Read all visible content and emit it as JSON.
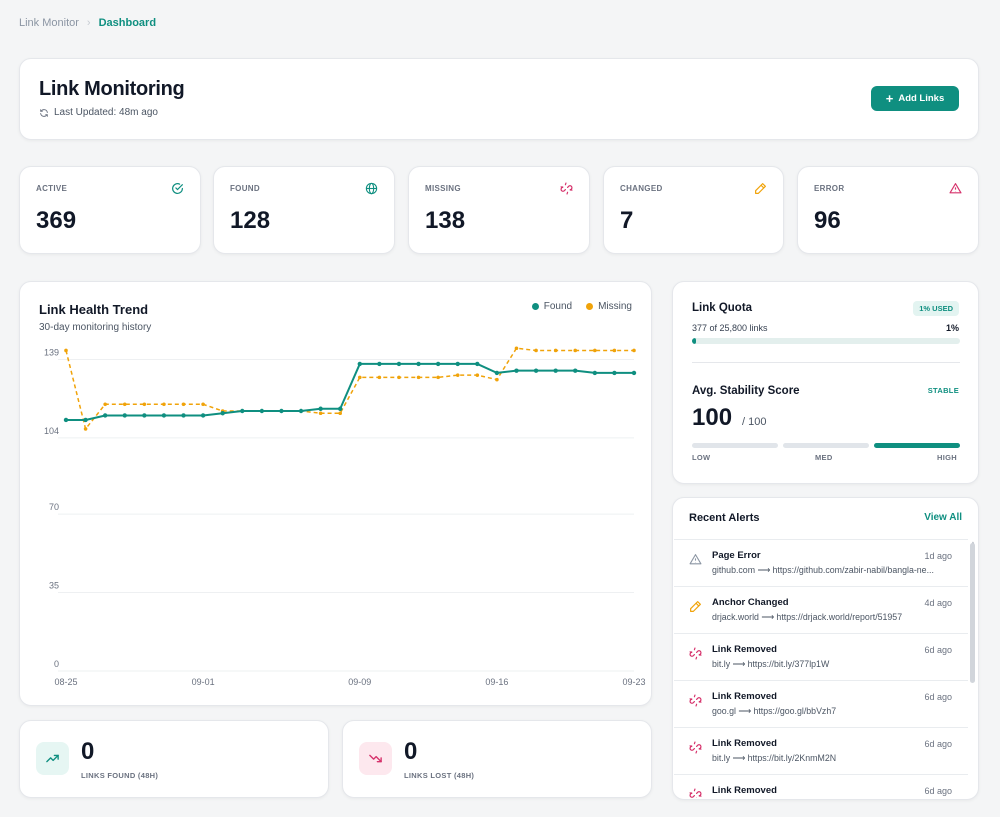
{
  "breadcrumb": {
    "root": "Link Monitor",
    "current": "Dashboard"
  },
  "header": {
    "title": "Link Monitoring",
    "last_updated": "Last Updated: 48m ago",
    "add_button": "Add Links"
  },
  "stats": [
    {
      "label": "ACTIVE",
      "value": "369",
      "icon": "check-circle-icon",
      "color": "#0f8f80"
    },
    {
      "label": "FOUND",
      "value": "128",
      "icon": "globe-icon",
      "color": "#0f8f80"
    },
    {
      "label": "MISSING",
      "value": "138",
      "icon": "broken-link-icon",
      "color": "#d6336c"
    },
    {
      "label": "CHANGED",
      "value": "7",
      "icon": "pencil-icon",
      "color": "#f0a30a"
    },
    {
      "label": "ERROR",
      "value": "96",
      "icon": "warning-icon",
      "color": "#d6336c"
    }
  ],
  "trend": {
    "title": "Link Health Trend",
    "subtitle": "30-day monitoring history"
  },
  "chart_data": {
    "type": "line",
    "title": "Link Health Trend",
    "subtitle": "30-day monitoring history",
    "x": [
      "08-25",
      "08-26",
      "08-27",
      "08-28",
      "08-29",
      "08-30",
      "08-31",
      "09-01",
      "09-02",
      "09-03",
      "09-04",
      "09-05",
      "09-06",
      "09-07",
      "09-08",
      "09-09",
      "09-10",
      "09-11",
      "09-12",
      "09-13",
      "09-14",
      "09-15",
      "09-16",
      "09-17",
      "09-18",
      "09-19",
      "09-20",
      "09-21",
      "09-22",
      "09-23"
    ],
    "xticks": [
      "08-25",
      "09-01",
      "09-09",
      "09-16",
      "09-23"
    ],
    "yticks": [
      0,
      35,
      70,
      104,
      139
    ],
    "ylim": [
      0,
      145
    ],
    "legend": "top-right",
    "series": [
      {
        "name": "Found",
        "color": "#0f8f80",
        "dashed": false,
        "values": [
          112,
          112,
          114,
          114,
          114,
          114,
          114,
          114,
          115,
          116,
          116,
          116,
          116,
          117,
          117,
          137,
          137,
          137,
          137,
          137,
          137,
          137,
          133,
          134,
          134,
          134,
          134,
          133,
          133,
          133
        ]
      },
      {
        "name": "Missing",
        "color": "#f0a30a",
        "dashed": true,
        "values": [
          143,
          108,
          119,
          119,
          119,
          119,
          119,
          119,
          116,
          116,
          116,
          116,
          116,
          115,
          115,
          131,
          131,
          131,
          131,
          131,
          132,
          132,
          130,
          144,
          143,
          143,
          143,
          143,
          143,
          143
        ]
      }
    ]
  },
  "quota": {
    "title": "Link Quota",
    "badge": "1% USED",
    "sub": "377 of 25,800 links",
    "pct": "1%",
    "fill": 0.0146
  },
  "stability": {
    "title": "Avg. Stability Score",
    "badge": "STABLE",
    "value": "100",
    "max": "/ 100",
    "labels": [
      "LOW",
      "MED",
      "HIGH"
    ]
  },
  "alerts": {
    "title": "Recent Alerts",
    "view_all": "View All",
    "items": [
      {
        "name": "Page Error",
        "time": "1d ago",
        "url": "github.com ⟶ https://github.com/zabir-nabil/bangla-ne...",
        "icon": "warning-outline-icon"
      },
      {
        "name": "Anchor Changed",
        "time": "4d ago",
        "url": "drjack.world ⟶ https://drjack.world/report/51957",
        "icon": "pencil-icon"
      },
      {
        "name": "Link Removed",
        "time": "6d ago",
        "url": "bit.ly ⟶ https://bit.ly/377lp1W",
        "icon": "broken-link-icon"
      },
      {
        "name": "Link Removed",
        "time": "6d ago",
        "url": "goo.gl ⟶ https://goo.gl/bbVzh7",
        "icon": "broken-link-icon"
      },
      {
        "name": "Link Removed",
        "time": "6d ago",
        "url": "bit.ly ⟶ https://bit.ly/2KnmM2N",
        "icon": "broken-link-icon"
      },
      {
        "name": "Link Removed",
        "time": "6d ago",
        "url": "",
        "icon": "broken-link-icon"
      }
    ]
  },
  "links_found": {
    "value": "0",
    "label": "LINKS FOUND (48H)"
  },
  "links_lost": {
    "value": "0",
    "label": "LINKS LOST (48H)"
  }
}
